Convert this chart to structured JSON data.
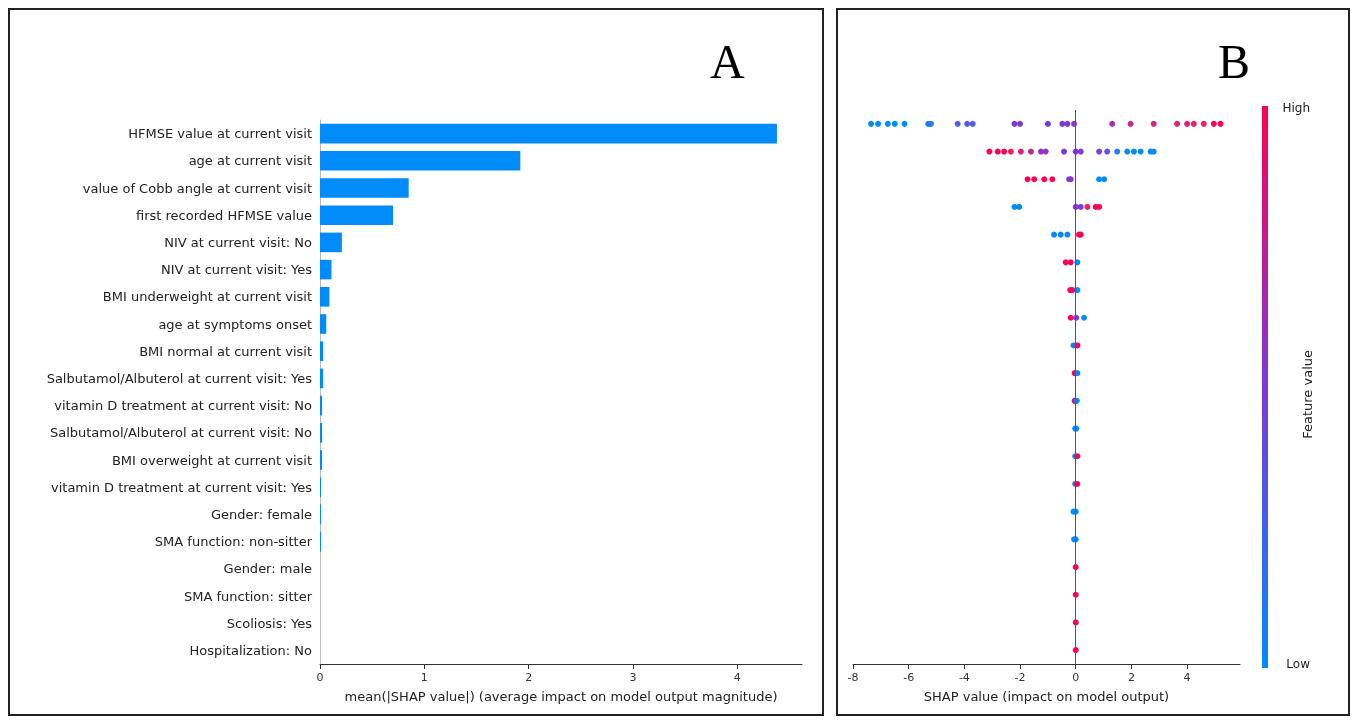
{
  "chart_data": [
    {
      "type": "bar",
      "title": "A",
      "orientation": "horizontal",
      "color": "#008bfb",
      "grid": false,
      "categories": [
        "HFMSE value at current visit",
        "age at current visit",
        "value of Cobb angle at current visit",
        "first recorded HFMSE value",
        "NIV at current visit: No",
        "NIV at current visit: Yes",
        "BMI underweight at current visit",
        "age at symptoms onset",
        "BMI normal at current visit",
        "Salbutamol/Albuterol at current visit: Yes",
        "vitamin D treatment at current visit: No",
        "Salbutamol/Albuterol at current visit: No",
        "BMI overweight at current visit",
        "vitamin D treatment at current visit: Yes",
        "Gender: female",
        "SMA function: non-sitter",
        "Gender: male",
        "SMA function: sitter",
        "Scoliosis: Yes",
        "Hospitalization: No"
      ],
      "values": [
        4.38,
        1.92,
        0.85,
        0.7,
        0.21,
        0.11,
        0.09,
        0.06,
        0.03,
        0.03,
        0.02,
        0.02,
        0.02,
        0.01,
        0.01,
        0.01,
        0,
        0,
        0,
        0
      ],
      "xlim": [
        0,
        4.62
      ],
      "xticks": [
        0,
        1,
        2,
        3,
        4
      ],
      "xlabel": "mean(|SHAP value|) (average impact on model output magnitude)"
    },
    {
      "type": "scatter",
      "title": "B",
      "orientation": "horizontal",
      "grid": false,
      "marker": "circle",
      "tick_labels": "x",
      "categories": [
        "HFMSE value at current visit",
        "age at current visit",
        "value of Cobb angle at current visit",
        "first recorded HFMSE value",
        "NIV at current visit: No",
        "NIV at current visit: Yes",
        "BMI underweight at current visit",
        "age at symptoms onset",
        "BMI normal at current visit",
        "Salbutamol/Albuterol at current visit: Yes",
        "vitamin D treatment at current visit: No",
        "Salbutamol/Albuterol at current visit: No",
        "BMI overweight at current visit",
        "vitamin D treatment at current visit: Yes",
        "Gender: female",
        "SMA function: non-sitter",
        "Gender: male",
        "SMA function: sitter",
        "Scoliosis: Yes",
        "Hospitalization: No"
      ],
      "series": [
        {
          "x": [
            "HFMSE value at current visit",
            "HFMSE value at current visit",
            "HFMSE value at current visit",
            "HFMSE value at current visit",
            "HFMSE value at current visit",
            "HFMSE value at current visit",
            "HFMSE value at current visit",
            "HFMSE value at current visit",
            "HFMSE value at current visit",
            "HFMSE value at current visit",
            "HFMSE value at current visit",
            "HFMSE value at current visit",
            "HFMSE value at current visit",
            "HFMSE value at current visit",
            "HFMSE value at current visit",
            "HFMSE value at current visit",
            "HFMSE value at current visit",
            "HFMSE value at current visit",
            "HFMSE value at current visit",
            "HFMSE value at current visit",
            "HFMSE value at current visit",
            "HFMSE value at current visit",
            "HFMSE value at current visit",
            "HFMSE value at current visit",
            "HFMSE value at current visit",
            "age at current visit",
            "age at current visit",
            "age at current visit",
            "age at current visit",
            "age at current visit",
            "age at current visit",
            "age at current visit",
            "age at current visit",
            "age at current visit",
            "age at current visit",
            "age at current visit",
            "age at current visit",
            "age at current visit",
            "age at current visit",
            "age at current visit",
            "age at current visit",
            "age at current visit",
            "age at current visit",
            "age at current visit",
            "value of Cobb angle at current visit",
            "value of Cobb angle at current visit",
            "value of Cobb angle at current visit",
            "value of Cobb angle at current visit",
            "value of Cobb angle at current visit",
            "value of Cobb angle at current visit",
            "value of Cobb angle at current visit",
            "value of Cobb angle at current visit",
            "first recorded HFMSE value",
            "first recorded HFMSE value",
            "first recorded HFMSE value",
            "first recorded HFMSE value",
            "first recorded HFMSE value",
            "first recorded HFMSE value",
            "first recorded HFMSE value",
            "NIV at current visit: No",
            "NIV at current visit: No",
            "NIV at current visit: No",
            "NIV at current visit: No",
            "NIV at current visit: No",
            "NIV at current visit: Yes",
            "NIV at current visit: Yes",
            "NIV at current visit: Yes",
            "BMI underweight at current visit",
            "BMI underweight at current visit",
            "BMI underweight at current visit",
            "age at symptoms onset",
            "age at symptoms onset",
            "age at symptoms onset",
            "BMI normal at current visit",
            "BMI normal at current visit",
            "Salbutamol/Albuterol at current visit: Yes",
            "Salbutamol/Albuterol at current visit: Yes",
            "vitamin D treatment at current visit: No",
            "vitamin D treatment at current visit: No",
            "Salbutamol/Albuterol at current visit: No",
            "Salbutamol/Albuterol at current visit: No",
            "BMI overweight at current visit",
            "BMI overweight at current visit",
            "vitamin D treatment at current visit: Yes",
            "vitamin D treatment at current visit: Yes",
            "Gender: female",
            "Gender: female",
            "SMA function: non-sitter",
            "SMA function: non-sitter",
            "Gender: male",
            "SMA function: sitter",
            "Scoliosis: Yes",
            "Hospitalization: No"
          ],
          "values": [
            -7.35,
            -7.1,
            -6.75,
            -6.5,
            -6.15,
            -5.3,
            -5.2,
            -4.24,
            -3.9,
            -3.7,
            -2.2,
            -2.0,
            -1.0,
            -0.48,
            -0.3,
            -0.06,
            1.31,
            1.97,
            2.8,
            3.64,
            4.0,
            4.24,
            4.6,
            4.96,
            5.2,
            -3.1,
            -2.8,
            -2.57,
            -2.33,
            -1.97,
            -1.61,
            -1.25,
            -1.08,
            -0.42,
            0,
            0.18,
            0.84,
            1.13,
            1.49,
            1.85,
            2.09,
            2.33,
            2.69,
            2.8,
            -1.73,
            -1.49,
            -1.13,
            -0.84,
            -0.24,
            -0.18,
            0.84,
            1.02,
            -2.2,
            -2.03,
            0,
            0.18,
            0.42,
            0.72,
            0.84,
            -0.78,
            -0.54,
            -0.3,
            0.12,
            0.18,
            -0.36,
            -0.18,
            0.06,
            -0.2,
            -0.12,
            0.06,
            -0.18,
            0.02,
            0.3,
            -0.08,
            0.06,
            -0.04,
            0.06,
            -0.04,
            0.04,
            -0.02,
            0.02,
            -0.02,
            0.06,
            -0.02,
            0.05,
            -0.08,
            0,
            -0.06,
            0,
            0,
            0,
            0,
            0
          ],
          "colors": [
            "#008bfb",
            "#008bfb",
            "#008bfb",
            "#008bfb",
            "#008bfb",
            "#1f7ef0",
            "#1f7ef0",
            "#4d63e2",
            "#5a5bde",
            "#5a5bde",
            "#7c3ad6",
            "#7c3ad6",
            "#7c3ad6",
            "#7c3ad6",
            "#7c3ad6",
            "#8b37c7",
            "#a930a9",
            "#c6298b",
            "#d5257c",
            "#e3216e",
            "#e3216e",
            "#f21e5f",
            "#f21e5f",
            "#ff0052",
            "#ff0052",
            "#ff0052",
            "#ff0052",
            "#ff0052",
            "#f21e5f",
            "#d5257c",
            "#b72c9a",
            "#9a33b8",
            "#8b37c7",
            "#7c3ad6",
            "#7c3ad6",
            "#7c3ad6",
            "#7048d8",
            "#6454db",
            "#1f7ef0",
            "#008bfb",
            "#008bfb",
            "#008bfb",
            "#008bfb",
            "#008bfb",
            "#ff0052",
            "#ff0052",
            "#ff0052",
            "#ff0052",
            "#7c3ad6",
            "#7c3ad6",
            "#008bfb",
            "#008bfb",
            "#008bfb",
            "#008bfb",
            "#7c3ad6",
            "#7c3ad6",
            "#f21e5f",
            "#ff0052",
            "#ff0052",
            "#008bfb",
            "#008bfb",
            "#008bfb",
            "#ff0052",
            "#ff0052",
            "#ff0052",
            "#ff0052",
            "#008bfb",
            "#ff0052",
            "#ff0052",
            "#008bfb",
            "#ff0052",
            "#7c3ad6",
            "#008bfb",
            "#008bfb",
            "#ff0052",
            "#ff0052",
            "#008bfb",
            "#ff0052",
            "#008bfb",
            "#008bfb",
            "#008bfb",
            "#008bfb",
            "#ff0052",
            "#008bfb",
            "#ff0052",
            "#008bfb",
            "#008bfb",
            "#008bfb",
            "#008bfb",
            "#ff0052",
            "#ff0052",
            "#ff0052",
            "#ff0052"
          ]
        }
      ],
      "xlim": [
        -8,
        5.9
      ],
      "xticks": [
        -8,
        -6,
        -4,
        -2,
        0,
        2,
        4
      ],
      "xlabel": "SHAP value (impact on model output)",
      "clabel": "Feature value",
      "annotations": [
        "High",
        "Low"
      ],
      "ref_lines": [
        {
          "axis": "x",
          "value": 0,
          "color": "#555555"
        }
      ]
    }
  ]
}
